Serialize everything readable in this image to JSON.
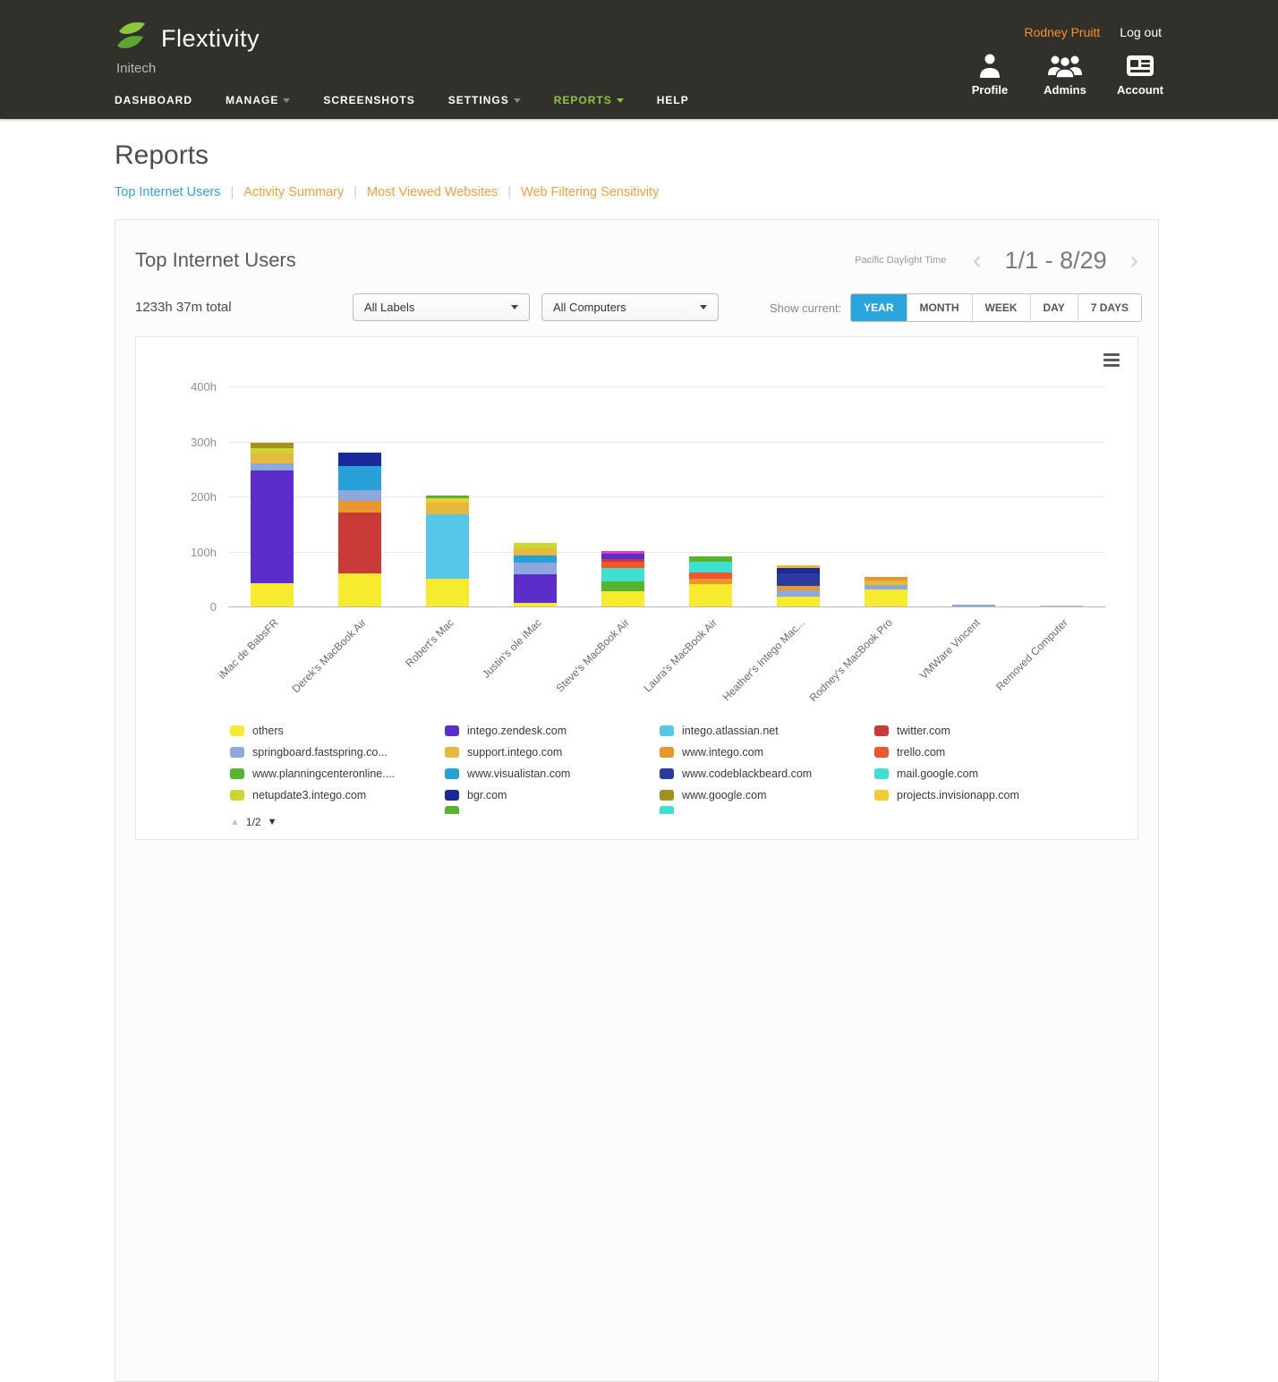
{
  "header": {
    "brand": "Flextivity",
    "company": "Initech",
    "user": "Rodney Pruitt",
    "logout": "Log out",
    "nav": [
      {
        "label": "DASHBOARD",
        "caret": false,
        "active": false
      },
      {
        "label": "MANAGE",
        "caret": true,
        "active": false
      },
      {
        "label": "SCREENSHOTS",
        "caret": false,
        "active": false
      },
      {
        "label": "SETTINGS",
        "caret": true,
        "active": false
      },
      {
        "label": "REPORTS",
        "caret": true,
        "active": true
      },
      {
        "label": "HELP",
        "caret": false,
        "active": false
      }
    ],
    "quick_links": [
      {
        "label": "Profile",
        "icon": "person-icon"
      },
      {
        "label": "Admins",
        "icon": "people-icon"
      },
      {
        "label": "Account",
        "icon": "card-icon"
      }
    ]
  },
  "page": {
    "title": "Reports",
    "separator": "|",
    "subnav": [
      {
        "label": "Top Internet Users",
        "active": true
      },
      {
        "label": "Activity Summary",
        "active": false
      },
      {
        "label": "Most Viewed Websites",
        "active": false
      },
      {
        "label": "Web Filtering Sensitivity",
        "active": false
      }
    ]
  },
  "panel": {
    "title": "Top Internet Users",
    "timezone": "Pacific Daylight Time",
    "date_range": "1/1 - 8/29",
    "chevron_left": "‹",
    "chevron_right": "›",
    "total": "1233h 37m total",
    "label_filter": "All Labels",
    "computer_filter": "All Computers",
    "show_current": "Show current:",
    "ranges": [
      "YEAR",
      "MONTH",
      "WEEK",
      "DAY",
      "7 DAYS"
    ],
    "active_range": "YEAR"
  },
  "chart_data": {
    "type": "bar",
    "stacked": true,
    "unit": "hours",
    "title": "Top Internet Users",
    "xlabel": "",
    "ylabel": "",
    "ylim": [
      0,
      440
    ],
    "grid": true,
    "yticks": [
      {
        "value": 0,
        "label": "0"
      },
      {
        "value": 100,
        "label": "100h"
      },
      {
        "value": 200,
        "label": "200h"
      },
      {
        "value": 300,
        "label": "300h"
      },
      {
        "value": 400,
        "label": "400h"
      }
    ],
    "categories": [
      "iMac de BabsFR",
      "Derek's MacBook Air",
      "Robert's Mac",
      "Justin's ole iMac",
      "Steve's MacBook Air",
      "Laura's MacBook Air",
      "Heather's Intego Mac...",
      "Rodney's MacBook Pro",
      "VMWare Vincent",
      "Removed Computer"
    ],
    "colors": {
      "others": "#f6eb2e",
      "intego.zendesk.com": "#5b2ecc",
      "intego.atlassian.net": "#55c8e8",
      "twitter.com": "#c93a38",
      "springboard.fastspring.co...": "#8fa8dc",
      "support.intego.com": "#e5b93c",
      "www.intego.com": "#e8962e",
      "trello.com": "#f2572b",
      "www.planningcenteronline....": "#58b32e",
      "www.visualistan.com": "#28a0d8",
      "www.codeblackbeard.com": "#2b3a9e",
      "mail.google.com": "#3fe0cf",
      "netupdate3.intego.com": "#cdd630",
      "bgr.com": "#1b2a9b",
      "www.google.com": "#a3901f",
      "projects.invisionapp.com": "#f2ca33"
    },
    "bars": [
      {
        "category": "iMac de BabsFR",
        "segments": [
          {
            "site": "others",
            "hours": 42
          },
          {
            "site": "intego.zendesk.com",
            "hours": 205
          },
          {
            "site": "springboard.fastspring.co...",
            "hours": 13
          },
          {
            "site": "support.intego.com",
            "hours": 18
          },
          {
            "site": "netupdate3.intego.com",
            "hours": 10
          },
          {
            "site": "www.google.com",
            "hours": 10
          }
        ]
      },
      {
        "category": "Derek's MacBook Air",
        "segments": [
          {
            "site": "others",
            "hours": 61
          },
          {
            "site": "twitter.com",
            "hours": 110
          },
          {
            "site": "www.intego.com",
            "hours": 21
          },
          {
            "site": "springboard.fastspring.co...",
            "hours": 19
          },
          {
            "site": "www.visualistan.com",
            "hours": 45
          },
          {
            "site": "bgr.com",
            "hours": 24
          }
        ]
      },
      {
        "category": "Robert's Mac",
        "segments": [
          {
            "site": "others",
            "hours": 50
          },
          {
            "site": "intego.atlassian.net",
            "hours": 118
          },
          {
            "site": "support.intego.com",
            "hours": 21
          },
          {
            "site": "projects.invisionapp.com",
            "hours": 8
          },
          {
            "site": "www.planningcenteronline....",
            "hours": 5
          }
        ]
      },
      {
        "category": "Justin's ole iMac",
        "segments": [
          {
            "site": "others",
            "hours": 6
          },
          {
            "site": "intego.zendesk.com",
            "hours": 52
          },
          {
            "site": "springboard.fastspring.co...",
            "hours": 21
          },
          {
            "site": "www.visualistan.com",
            "hours": 13
          },
          {
            "site": "support.intego.com",
            "hours": 13
          },
          {
            "site": "netupdate3.intego.com",
            "hours": 11
          }
        ]
      },
      {
        "category": "Steve's MacBook Air",
        "segments": [
          {
            "site": "others",
            "hours": 27
          },
          {
            "site": "www.planningcenteronline....",
            "hours": 19
          },
          {
            "site": "mail.google.com",
            "hours": 24
          },
          {
            "site": "trello.com",
            "hours": 11
          },
          {
            "site": "twitter.com",
            "hours": 5
          },
          {
            "site": "intego.zendesk.com",
            "hours": 10
          },
          {
            "color": "#e23cc8",
            "hours": 5
          }
        ]
      },
      {
        "category": "Laura's MacBook Air",
        "segments": [
          {
            "site": "others",
            "hours": 40
          },
          {
            "site": "www.intego.com",
            "hours": 11
          },
          {
            "site": "trello.com",
            "hours": 11
          },
          {
            "site": "mail.google.com",
            "hours": 19
          },
          {
            "site": "www.planningcenteronline....",
            "hours": 10
          }
        ]
      },
      {
        "category": "Heather's Intego Mac...",
        "segments": [
          {
            "site": "others",
            "hours": 18
          },
          {
            "site": "springboard.fastspring.co...",
            "hours": 11
          },
          {
            "site": "www.intego.com",
            "hours": 8
          },
          {
            "site": "www.codeblackbeard.com",
            "hours": 23
          },
          {
            "site": "bgr.com",
            "hours": 10
          },
          {
            "site": "support.intego.com",
            "hours": 5
          }
        ]
      },
      {
        "category": "Rodney's MacBook Pro",
        "segments": [
          {
            "site": "others",
            "hours": 31
          },
          {
            "site": "springboard.fastspring.co...",
            "hours": 8
          },
          {
            "site": "support.intego.com",
            "hours": 8
          },
          {
            "site": "www.intego.com",
            "hours": 6
          }
        ]
      },
      {
        "category": "VMWare Vincent",
        "segments": [
          {
            "site": "springboard.fastspring.co...",
            "hours": 3
          }
        ]
      },
      {
        "category": "Removed Computer",
        "segments": [
          {
            "color": "#bdbdbd",
            "hours": 1
          }
        ]
      }
    ]
  },
  "legend": {
    "columns": [
      [
        {
          "label": "others"
        },
        {
          "label": "springboard.fastspring.co..."
        },
        {
          "label": "www.planningcenteronline...."
        },
        {
          "label": "netupdate3.intego.com"
        }
      ],
      [
        {
          "label": "intego.zendesk.com"
        },
        {
          "label": "support.intego.com"
        },
        {
          "label": "www.visualistan.com"
        },
        {
          "label": "bgr.com"
        }
      ],
      [
        {
          "label": "intego.atlassian.net"
        },
        {
          "label": "www.intego.com"
        },
        {
          "label": "www.codeblackbeard.com"
        },
        {
          "label": "www.google.com"
        }
      ],
      [
        {
          "label": "twitter.com"
        },
        {
          "label": "trello.com"
        },
        {
          "label": "mail.google.com"
        },
        {
          "label": "projects.invisionapp.com"
        }
      ]
    ],
    "partial_swatches": [
      "#58b32e",
      "#3fe0cf"
    ],
    "pagination": "1/2",
    "nav_up": "▲",
    "nav_down": "▼"
  }
}
